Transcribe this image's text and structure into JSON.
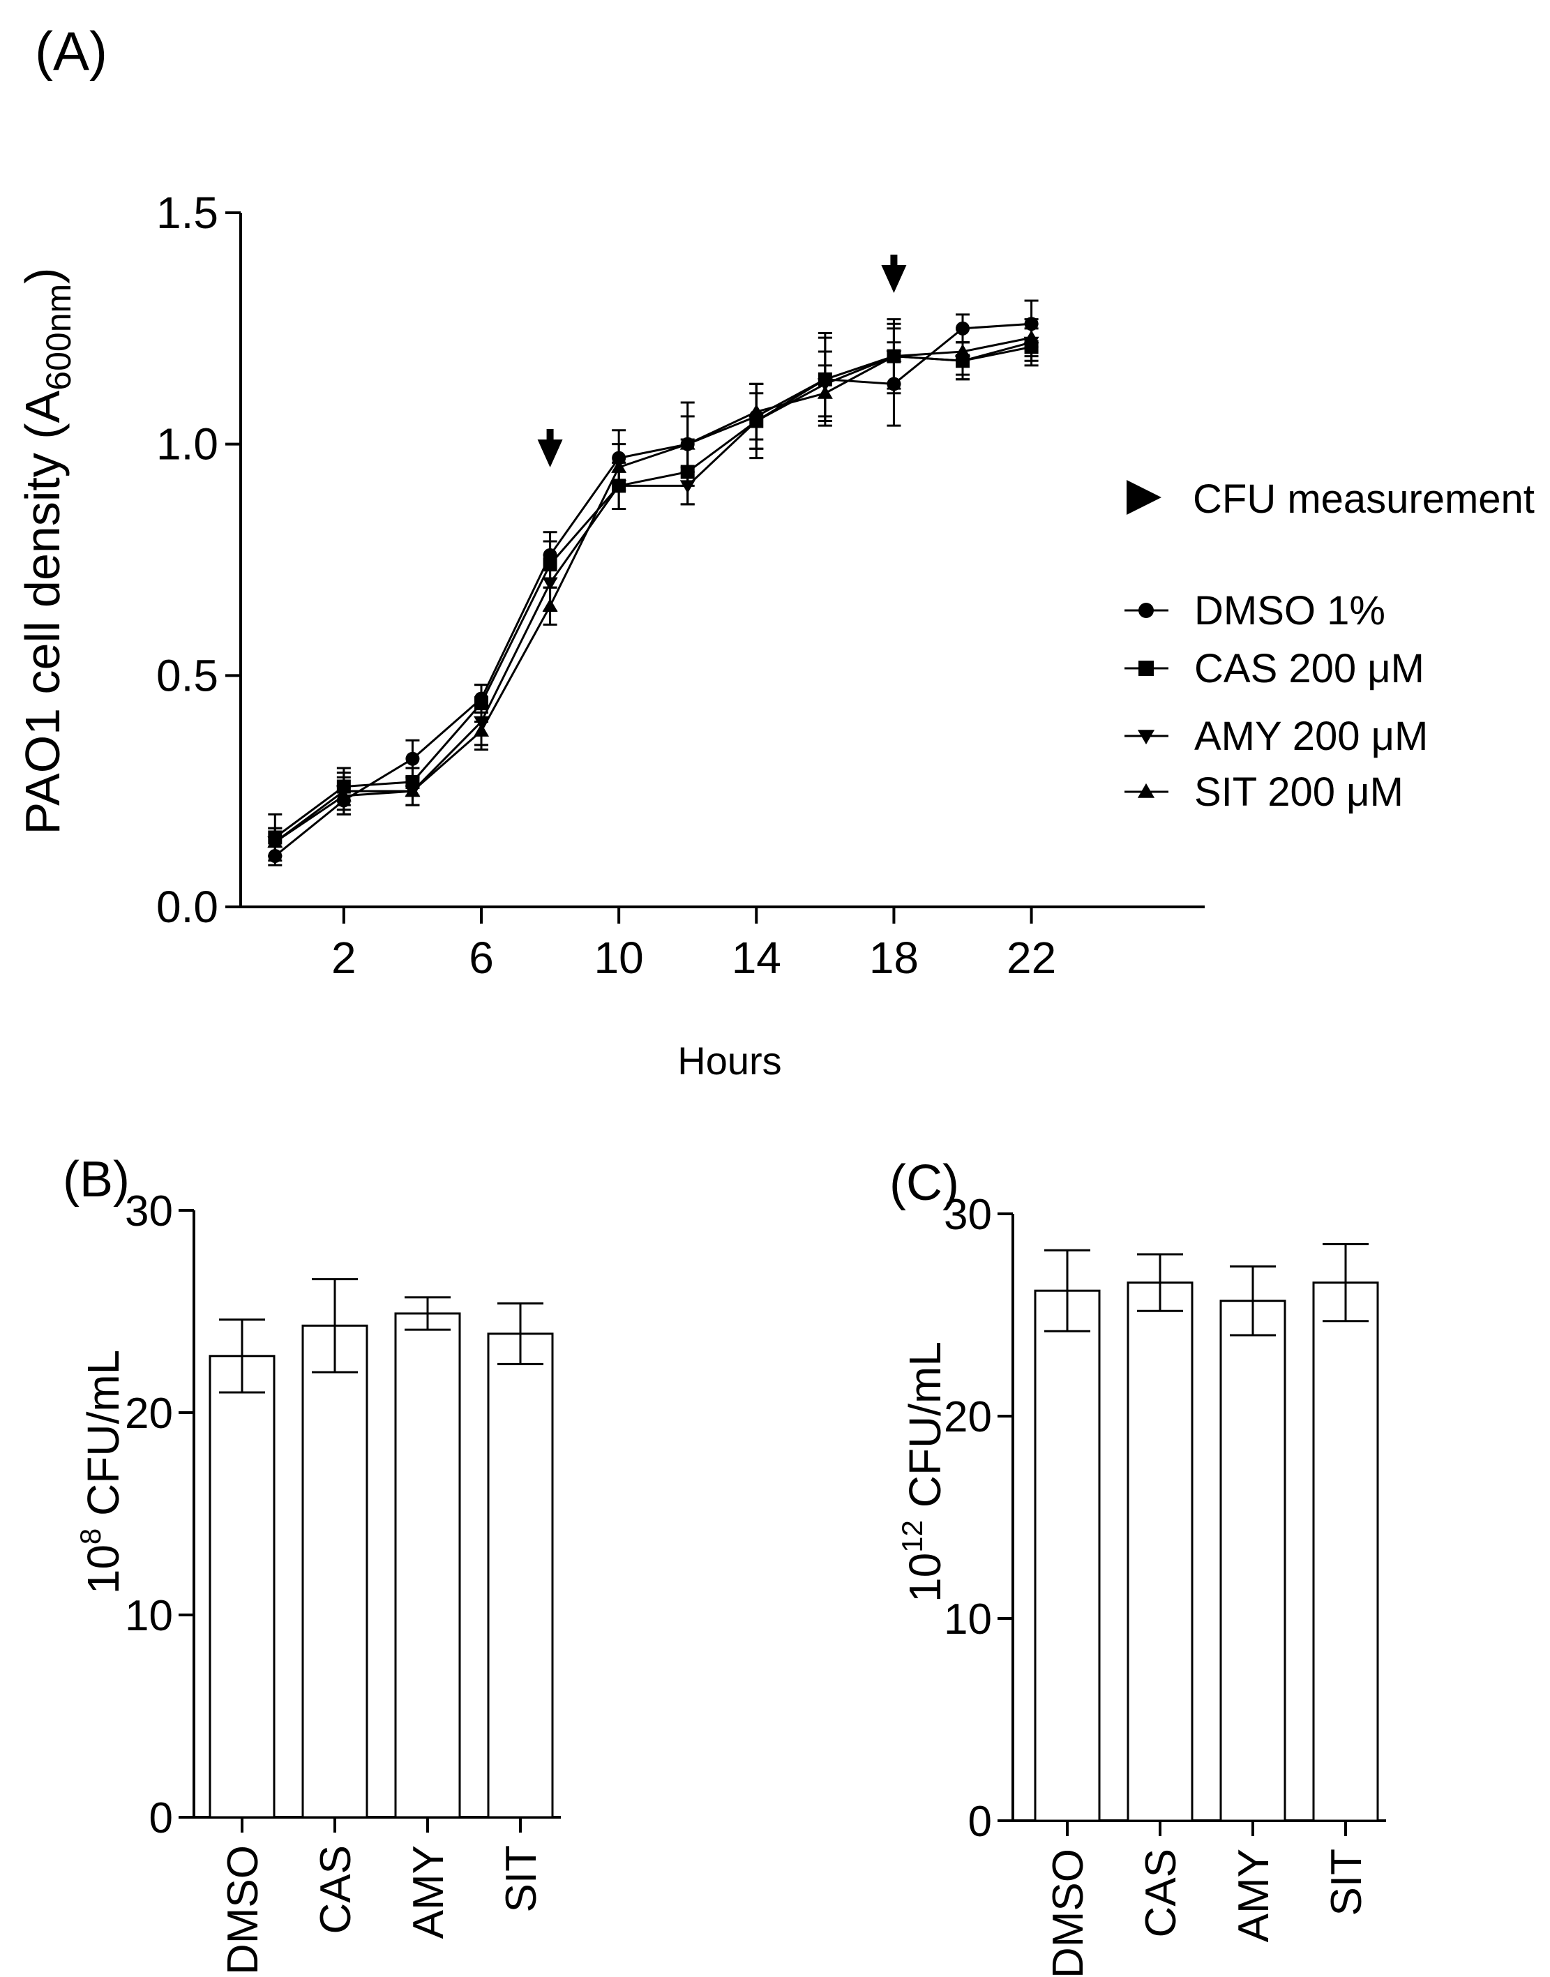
{
  "figure": {
    "panels": {
      "a": {
        "label": "(A)"
      },
      "b": {
        "label": "(B)"
      },
      "c": {
        "label": "(C)"
      }
    },
    "legend": {
      "cfu_marker_label": "CFU measurement"
    }
  },
  "chart_data": [
    {
      "id": "A",
      "type": "line",
      "title": "",
      "xlabel": "Hours",
      "ylabel": "PAO1 cell density (A",
      "ylabel_subscript": "600nm",
      "ylabel_close": ")",
      "xlim": [
        -1,
        27
      ],
      "ylim": [
        0,
        1.5
      ],
      "xticks": [
        2,
        6,
        10,
        14,
        18,
        22
      ],
      "yticks": [
        0.0,
        0.5,
        1.0,
        1.5
      ],
      "ytick_labels": [
        "0.0",
        "0.5",
        "1.0",
        "1.5"
      ],
      "x": [
        0,
        2,
        4,
        6,
        8,
        10,
        12,
        14,
        16,
        18,
        20,
        22
      ],
      "cfu_measurement_hours": [
        8,
        18
      ],
      "series": [
        {
          "name": "DMSO 1%",
          "marker": "circle",
          "values": [
            0.11,
            0.23,
            0.32,
            0.45,
            0.76,
            0.97,
            1.0,
            1.06,
            1.14,
            1.13,
            1.25,
            1.26
          ],
          "errors": [
            0.02,
            0.03,
            0.04,
            0.03,
            0.05,
            0.06,
            0.09,
            0.07,
            0.09,
            0.09,
            0.03,
            0.05
          ]
        },
        {
          "name": "CAS 200 μM",
          "marker": "square",
          "values": [
            0.15,
            0.26,
            0.27,
            0.44,
            0.74,
            0.91,
            0.94,
            1.05,
            1.14,
            1.19,
            1.18,
            1.21
          ],
          "errors": [
            0.05,
            0.04,
            0.03,
            0.04,
            0.05,
            0.05,
            0.07,
            0.08,
            0.1,
            0.08,
            0.04,
            0.04
          ]
        },
        {
          "name": "AMY 200 μM",
          "marker": "triangle-down",
          "values": [
            0.14,
            0.25,
            0.25,
            0.4,
            0.7,
            0.91,
            0.91,
            1.05,
            1.13,
            1.19,
            1.18,
            1.22
          ],
          "errors": [
            0.03,
            0.04,
            0.03,
            0.05,
            0.06,
            0.05,
            0.04,
            0.06,
            0.07,
            0.06,
            0.04,
            0.04
          ]
        },
        {
          "name": "SIT 200 μM",
          "marker": "triangle-up",
          "values": [
            0.14,
            0.24,
            0.25,
            0.38,
            0.65,
            0.95,
            1.0,
            1.07,
            1.11,
            1.19,
            1.2,
            1.23
          ],
          "errors": [
            0.03,
            0.04,
            0.03,
            0.04,
            0.04,
            0.05,
            0.06,
            0.06,
            0.06,
            0.07,
            0.05,
            0.04
          ]
        }
      ]
    },
    {
      "id": "B",
      "type": "bar",
      "title": "",
      "xlabel": "",
      "ylabel_base": "10",
      "ylabel_exponent": "8",
      "ylabel_rest": " CFU/mL",
      "categories": [
        "DMSO",
        "CAS",
        "AMY",
        "SIT"
      ],
      "values": [
        22.8,
        24.3,
        24.9,
        23.9
      ],
      "errors": [
        1.8,
        2.3,
        0.8,
        1.5
      ],
      "ylim": [
        0,
        30
      ],
      "yticks": [
        0,
        10,
        20,
        30
      ]
    },
    {
      "id": "C",
      "type": "bar",
      "title": "",
      "xlabel": "",
      "ylabel_base": "10",
      "ylabel_exponent": "12",
      "ylabel_rest": " CFU/mL",
      "categories": [
        "DMSO",
        "CAS",
        "AMY",
        "SIT"
      ],
      "values": [
        26.2,
        26.6,
        25.7,
        26.6
      ],
      "errors": [
        2.0,
        1.4,
        1.7,
        1.9
      ],
      "ylim": [
        0,
        30
      ],
      "yticks": [
        0,
        10,
        20,
        30
      ]
    }
  ]
}
